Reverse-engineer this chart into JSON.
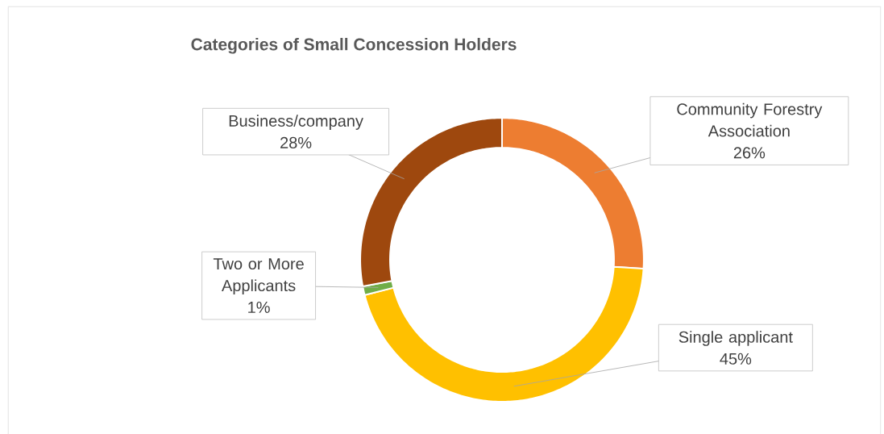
{
  "chart_data": {
    "type": "donut",
    "title": "Categories of Small Concession Holders",
    "categories": [
      "Community Forestry Association",
      "Single applicant",
      "Two or More Applicants",
      "Business/company"
    ],
    "values": [
      26,
      45,
      1,
      28
    ],
    "value_labels": [
      "26%",
      "45%",
      "1%",
      "28%"
    ],
    "colors": [
      "#ed7d31",
      "#ffc000",
      "#70ad47",
      "#9e480e"
    ]
  }
}
